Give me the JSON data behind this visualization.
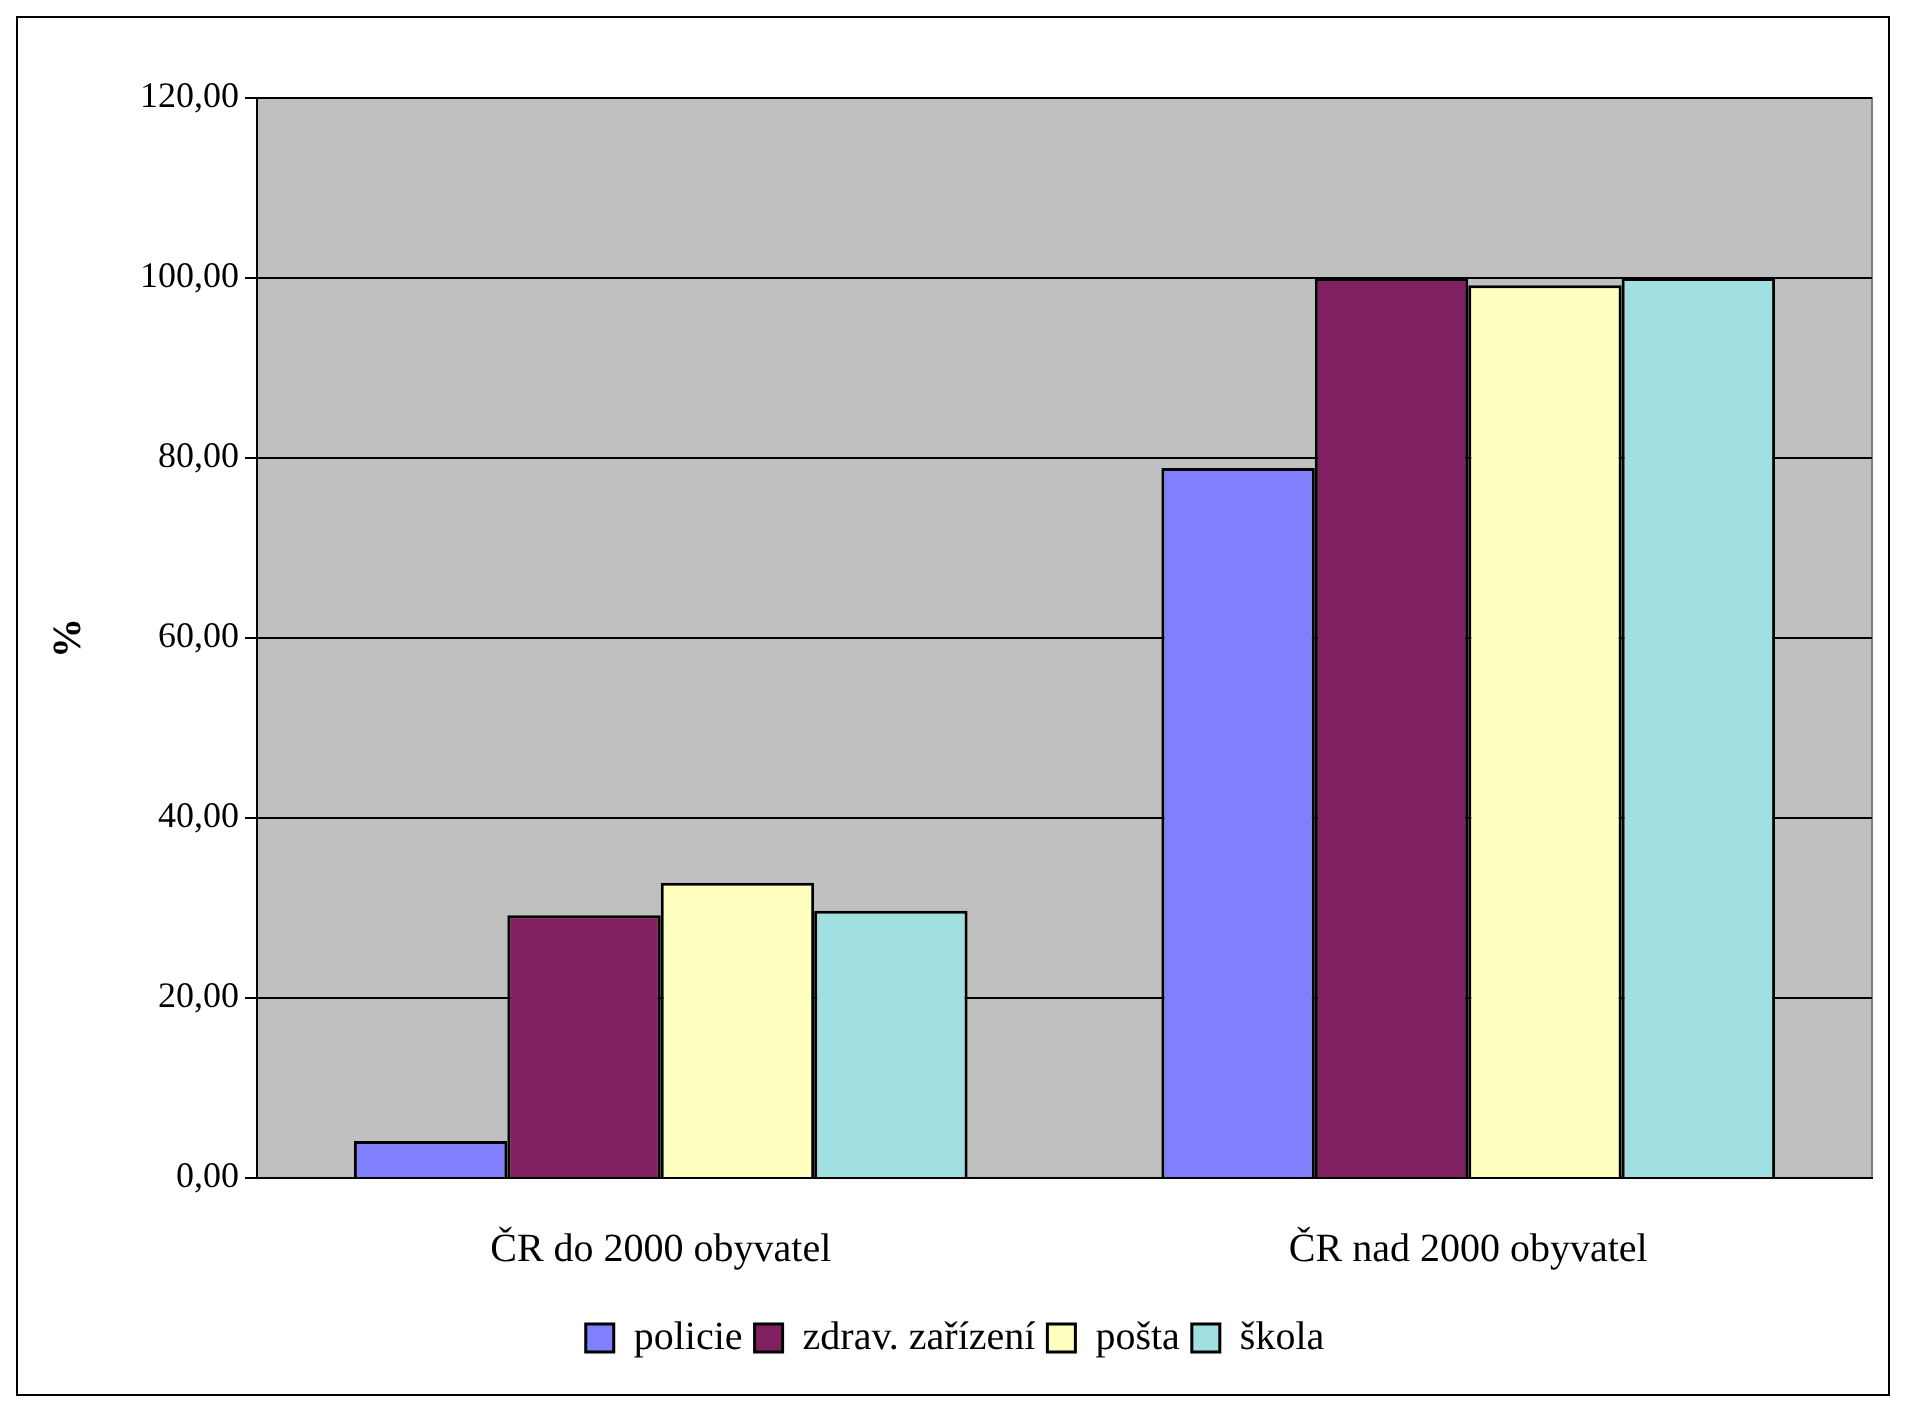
{
  "chart_data": {
    "type": "bar",
    "ylabel": "%",
    "categories": [
      "ČR do 2000 obyvatel",
      "ČR nad 2000 obyvatel"
    ],
    "series": [
      {
        "name": "policie",
        "color": "#8080ff",
        "values": [
          4.1,
          78.9
        ]
      },
      {
        "name": "zdrav. zařízení",
        "color": "#802060",
        "values": [
          29.2,
          100
        ]
      },
      {
        "name": "pošta",
        "color": "#ffffc0",
        "values": [
          32.8,
          99.2
        ]
      },
      {
        "name": "škola",
        "color": "#a0e0e0",
        "values": [
          29.7,
          100
        ]
      }
    ],
    "ylim": [
      0,
      120
    ],
    "yticks": [
      {
        "value": 0,
        "label": "0,00"
      },
      {
        "value": 20,
        "label": "20,00"
      },
      {
        "value": 40,
        "label": "40,00"
      },
      {
        "value": 60,
        "label": "60,00"
      },
      {
        "value": 80,
        "label": "80,00"
      },
      {
        "value": 100,
        "label": "100,00"
      },
      {
        "value": 120,
        "label": "120,00"
      }
    ],
    "grid": "y",
    "legend": "bottom"
  }
}
